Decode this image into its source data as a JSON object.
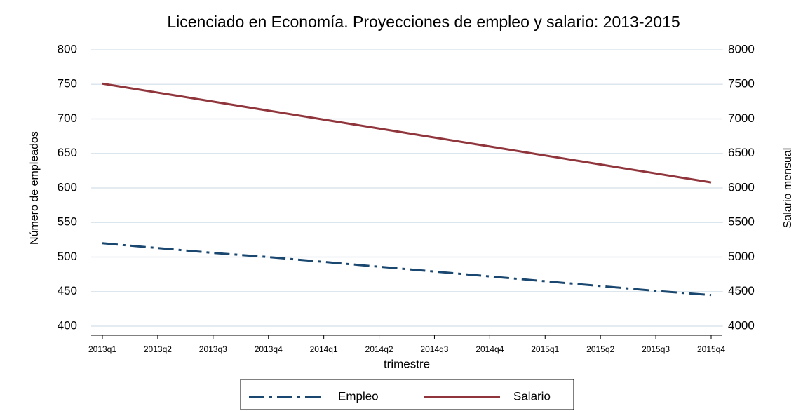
{
  "chart_data": {
    "type": "line",
    "title": "Licenciado en Economía. Proyecciones de empleo y salario: 2013-2015",
    "x_label": "trimestre",
    "y_label": "Número de empleados",
    "y2_label": "Salario mensual",
    "categories": [
      "2013q1",
      "2013q2",
      "2013q3",
      "2013q4",
      "2014q1",
      "2014q2",
      "2014q3",
      "2014q4",
      "2015q1",
      "2015q2",
      "2015q3",
      "2015q4"
    ],
    "series": [
      {
        "name": "Empleo",
        "color": "#1a476f",
        "dash": "long-dash-dot",
        "values": [
          520,
          513,
          506,
          500,
          493,
          486,
          479,
          472,
          465,
          458,
          451,
          445
        ]
      },
      {
        "name": "Salario",
        "color": "#90353b",
        "axis": "y2",
        "values": [
          7510,
          7380,
          7250,
          7120,
          6990,
          6860,
          6730,
          6600,
          6470,
          6340,
          6210,
          6080
        ]
      }
    ],
    "ylim": [
      400,
      800
    ],
    "yticks": [
      400,
      450,
      500,
      550,
      600,
      650,
      700,
      750,
      800
    ],
    "y2lim": [
      4000,
      8000
    ],
    "y2ticks": [
      4000,
      4500,
      5000,
      5500,
      6000,
      6500,
      7000,
      7500,
      8000
    ],
    "grid": true,
    "legend": "bottom"
  }
}
